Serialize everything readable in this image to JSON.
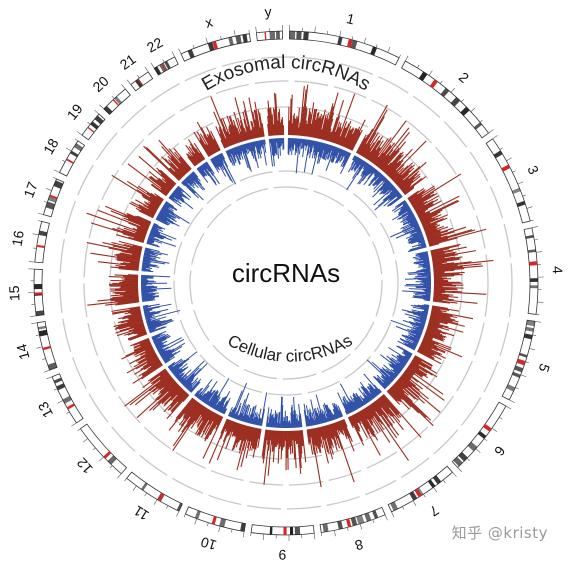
{
  "figure": {
    "center_title": "circRNAs",
    "outer_track_title": "Exosomal circRNAs",
    "inner_track_title": "Cellular circRNAs",
    "watermark": "知乎 @kristy"
  },
  "colors": {
    "exosomal": "#9b2d20",
    "cellular": "#3050a8",
    "guide_dash": "#c8c8c8",
    "ideogram_band": "#222222",
    "centromere": "#d62728",
    "background": "#ffffff"
  },
  "chromosomes": [
    {
      "name": "1",
      "length": 248
    },
    {
      "name": "2",
      "length": 242
    },
    {
      "name": "3",
      "length": 198
    },
    {
      "name": "4",
      "length": 190
    },
    {
      "name": "5",
      "length": 181
    },
    {
      "name": "6",
      "length": 171
    },
    {
      "name": "7",
      "length": 159
    },
    {
      "name": "8",
      "length": 145
    },
    {
      "name": "9",
      "length": 138
    },
    {
      "name": "10",
      "length": 134
    },
    {
      "name": "11",
      "length": 135
    },
    {
      "name": "12",
      "length": 133
    },
    {
      "name": "13",
      "length": 114
    },
    {
      "name": "14",
      "length": 107
    },
    {
      "name": "15",
      "length": 102
    },
    {
      "name": "16",
      "length": 90
    },
    {
      "name": "17",
      "length": 83
    },
    {
      "name": "18",
      "length": 80
    },
    {
      "name": "19",
      "length": 59
    },
    {
      "name": "20",
      "length": 64
    },
    {
      "name": "21",
      "length": 47
    },
    {
      "name": "22",
      "length": 51
    },
    {
      "name": "x",
      "length": 156
    },
    {
      "name": "y",
      "length": 57
    }
  ],
  "tracks": {
    "exosomal": {
      "direction": "outward",
      "scale": "relative"
    },
    "cellular": {
      "direction": "inward",
      "scale": "relative"
    }
  }
}
